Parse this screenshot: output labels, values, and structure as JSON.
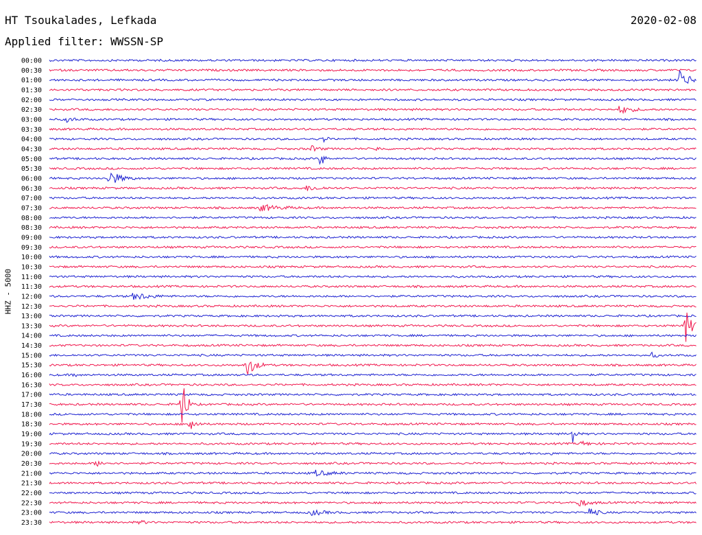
{
  "header": {
    "station": "HT Tsoukalades, Lefkada",
    "date": "2020-02-08",
    "filter": "Applied filter: WWSSN-SP"
  },
  "channel_label": "HHZ - 5000",
  "colors": {
    "a": "#1a1fd0",
    "b": "#f0144b"
  },
  "rows": [
    {
      "label": "00:00",
      "c": "a",
      "events": []
    },
    {
      "label": "00:30",
      "c": "b",
      "events": []
    },
    {
      "label": "01:00",
      "c": "a",
      "events": [
        [
          992,
          16,
          10
        ]
      ]
    },
    {
      "label": "01:30",
      "c": "b",
      "events": []
    },
    {
      "label": "02:00",
      "c": "a",
      "events": []
    },
    {
      "label": "02:30",
      "c": "b",
      "events": [
        [
          904,
          6,
          14
        ]
      ]
    },
    {
      "label": "03:00",
      "c": "a",
      "events": [
        [
          95,
          4,
          10
        ]
      ]
    },
    {
      "label": "03:30",
      "c": "b",
      "events": []
    },
    {
      "label": "04:00",
      "c": "a",
      "events": [
        [
          472,
          5,
          4
        ]
      ]
    },
    {
      "label": "04:30",
      "c": "b",
      "events": [
        [
          455,
          4,
          8
        ],
        [
          549,
          4,
          4
        ]
      ]
    },
    {
      "label": "05:00",
      "c": "a",
      "events": [
        [
          468,
          14,
          4
        ]
      ]
    },
    {
      "label": "05:30",
      "c": "b",
      "events": []
    },
    {
      "label": "06:00",
      "c": "a",
      "events": [
        [
          158,
          12,
          14
        ]
      ]
    },
    {
      "label": "06:30",
      "c": "b",
      "events": [
        [
          448,
          4,
          14
        ]
      ]
    },
    {
      "label": "07:00",
      "c": "a",
      "events": []
    },
    {
      "label": "07:30",
      "c": "b",
      "events": [
        [
          380,
          5,
          22
        ]
      ]
    },
    {
      "label": "08:00",
      "c": "a",
      "events": []
    },
    {
      "label": "08:30",
      "c": "b",
      "events": []
    },
    {
      "label": "09:00",
      "c": "a",
      "events": []
    },
    {
      "label": "09:30",
      "c": "b",
      "events": []
    },
    {
      "label": "10:00",
      "c": "a",
      "events": []
    },
    {
      "label": "10:30",
      "c": "b",
      "events": []
    },
    {
      "label": "11:00",
      "c": "a",
      "events": []
    },
    {
      "label": "11:30",
      "c": "b",
      "events": []
    },
    {
      "label": "12:00",
      "c": "a",
      "events": [
        [
          195,
          6,
          18
        ]
      ]
    },
    {
      "label": "12:30",
      "c": "b",
      "events": []
    },
    {
      "label": "13:00",
      "c": "a",
      "events": []
    },
    {
      "label": "13:30",
      "c": "b",
      "events": [
        [
          1000,
          24,
          8
        ]
      ]
    },
    {
      "label": "14:00",
      "c": "a",
      "events": []
    },
    {
      "label": "14:30",
      "c": "b",
      "events": []
    },
    {
      "label": "15:00",
      "c": "a",
      "events": [
        [
          952,
          6,
          4
        ]
      ]
    },
    {
      "label": "15:30",
      "c": "b",
      "events": [
        [
          359,
          18,
          10
        ]
      ]
    },
    {
      "label": "16:00",
      "c": "a",
      "events": [
        [
          109,
          4,
          2
        ]
      ]
    },
    {
      "label": "16:30",
      "c": "b",
      "events": []
    },
    {
      "label": "17:00",
      "c": "a",
      "events": []
    },
    {
      "label": "17:30",
      "c": "b",
      "events": [
        [
          264,
          52,
          6
        ]
      ]
    },
    {
      "label": "18:00",
      "c": "a",
      "events": []
    },
    {
      "label": "18:30",
      "c": "b",
      "events": [
        [
          277,
          14,
          6
        ]
      ]
    },
    {
      "label": "19:00",
      "c": "a",
      "events": [
        [
          836,
          20,
          3
        ]
      ]
    },
    {
      "label": "19:30",
      "c": "b",
      "events": [
        [
          848,
          3,
          12
        ]
      ]
    },
    {
      "label": "20:00",
      "c": "a",
      "events": [
        [
          800,
          4,
          3
        ]
      ]
    },
    {
      "label": "20:30",
      "c": "b",
      "events": [
        [
          140,
          4,
          10
        ]
      ]
    },
    {
      "label": "21:00",
      "c": "a",
      "events": [
        [
          460,
          4,
          18
        ]
      ]
    },
    {
      "label": "21:30",
      "c": "b",
      "events": []
    },
    {
      "label": "22:00",
      "c": "a",
      "events": []
    },
    {
      "label": "22:30",
      "c": "b",
      "events": [
        [
          843,
          6,
          12
        ]
      ]
    },
    {
      "label": "23:00",
      "c": "a",
      "events": [
        [
          860,
          8,
          8
        ],
        [
          455,
          4,
          14
        ]
      ]
    },
    {
      "label": "23:30",
      "c": "b",
      "events": [
        [
          205,
          5,
          4
        ]
      ]
    }
  ]
}
